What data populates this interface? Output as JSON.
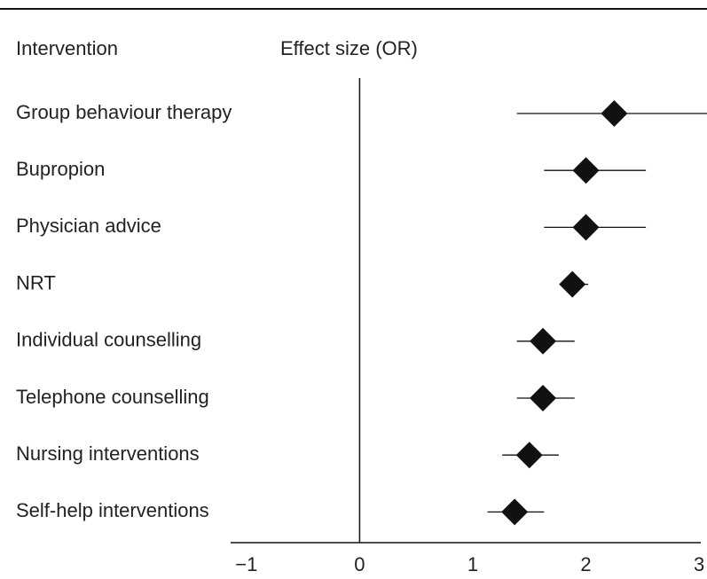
{
  "chart_data": {
    "type": "forest",
    "category_header": "Intervention",
    "value_header": "Effect size (OR)",
    "categories": [
      "Group behaviour therapy",
      "Bupropion",
      "Physician advice",
      "NRT",
      "Individual counselling",
      "Telephone counselling",
      "Nursing interventions",
      "Self-help interventions"
    ],
    "values": [
      2.25,
      2.0,
      2.0,
      1.88,
      1.62,
      1.62,
      1.5,
      1.37
    ],
    "ci_low": [
      1.39,
      1.63,
      1.63,
      1.78,
      1.39,
      1.39,
      1.26,
      1.13
    ],
    "ci_high": [
      3.07,
      2.53,
      2.53,
      2.02,
      1.9,
      1.9,
      1.76,
      1.63
    ],
    "color": "#111111",
    "xlim": [
      -1.14,
      3.07
    ],
    "xticks": [
      {
        "value": -1,
        "label": "−1"
      },
      0,
      1,
      2,
      3
    ],
    "reference_line": 0
  }
}
